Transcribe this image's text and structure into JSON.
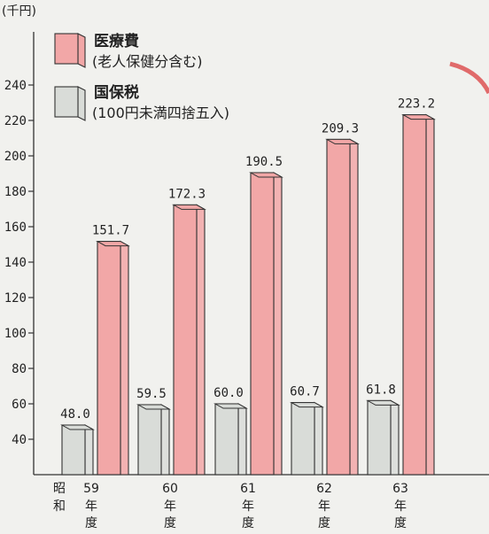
{
  "chart_data": {
    "type": "bar",
    "unit": "(千円)",
    "categories": [
      "59年度",
      "60年度",
      "61年度",
      "62年度",
      "63年度"
    ],
    "category_prefix": "昭和",
    "series": [
      {
        "name": "国保税",
        "note": "(100円未満四捨五入)",
        "values": [
          48.0,
          59.5,
          60.0,
          60.7,
          61.8
        ],
        "labels": [
          "48.0",
          "59.5",
          "60.0",
          "60.7",
          "61.8"
        ],
        "color": "#d9dcd8"
      },
      {
        "name": "医療費",
        "note": "(老人保健分含む)",
        "values": [
          151.7,
          172.3,
          190.5,
          209.3,
          223.2
        ],
        "labels": [
          "151.7",
          "172.3",
          "190.5",
          "209.3",
          "223.2"
        ],
        "color": "#f2a7a7"
      }
    ],
    "y_ticks": [
      40,
      60,
      80,
      100,
      120,
      140,
      160,
      180,
      200,
      220,
      240
    ],
    "ylim": [
      20,
      246
    ],
    "legend_position": "top-left",
    "grid": false
  }
}
